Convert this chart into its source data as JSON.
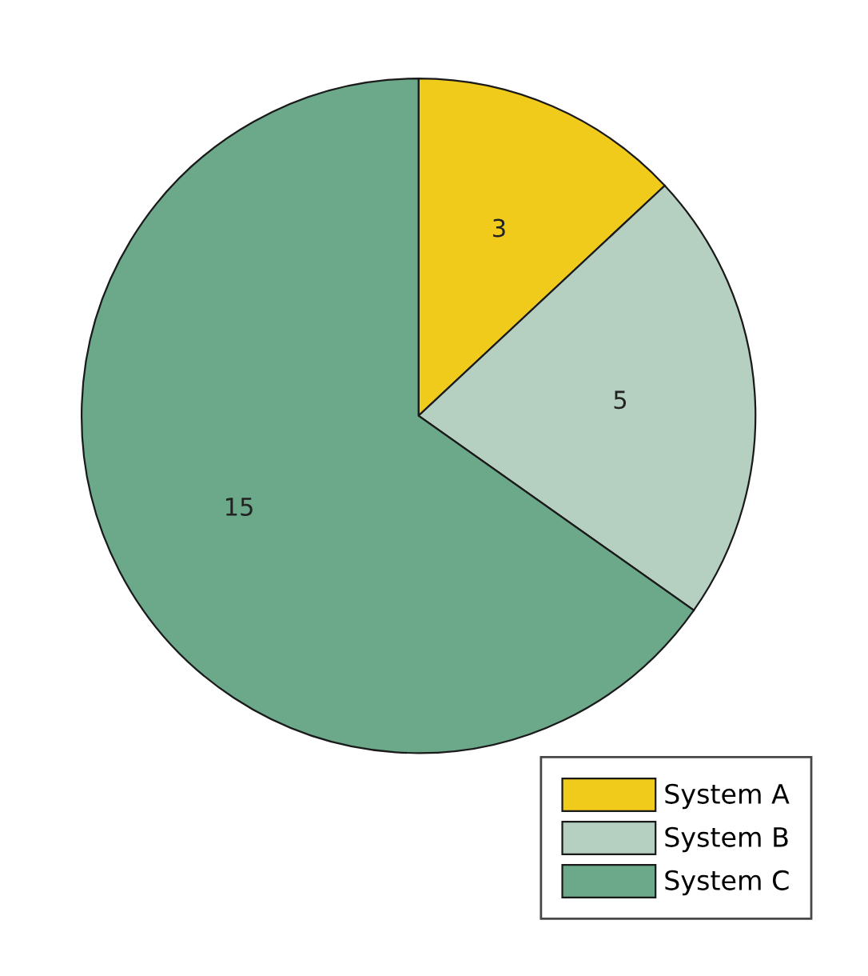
{
  "chart_data": {
    "type": "pie",
    "categories": [
      "System A",
      "System B",
      "System C"
    ],
    "values": [
      3,
      5,
      15
    ],
    "colors": [
      "#f0cb1c",
      "#b5cfc0",
      "#6ca88a"
    ],
    "data_labels": true,
    "legend": "bottom right"
  }
}
